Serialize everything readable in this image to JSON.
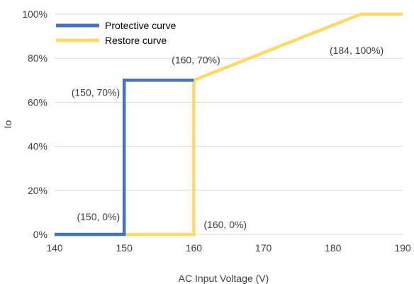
{
  "chart_data": {
    "type": "line",
    "title": "",
    "xlabel": "AC Input Voltage (V)",
    "ylabel": "Io",
    "xlim": [
      140,
      190
    ],
    "ylim": [
      0,
      100
    ],
    "x_ticks": [
      140,
      150,
      160,
      170,
      180,
      190
    ],
    "y_ticks": [
      0,
      20,
      40,
      60,
      80,
      100
    ],
    "y_tick_suffix": "%",
    "grid": "horizontal",
    "legend_position": "top-left",
    "series": [
      {
        "name": "Protective curve",
        "color": "#4472C4",
        "points": [
          [
            140,
            0
          ],
          [
            150,
            0
          ],
          [
            150,
            70
          ],
          [
            160,
            70
          ]
        ]
      },
      {
        "name": "Restore curve",
        "color": "#FFD966",
        "points": [
          [
            140,
            0
          ],
          [
            160,
            0
          ],
          [
            160,
            70
          ],
          [
            184,
            100
          ],
          [
            190,
            100
          ]
        ]
      }
    ],
    "annotations": [
      {
        "text": "(150, 70%)",
        "x": 150,
        "y": 70,
        "anchor": "end",
        "dx": -6,
        "dy": 22
      },
      {
        "text": "(160, 70%)",
        "x": 160,
        "y": 70,
        "anchor": "middle",
        "dx": 3,
        "dy": -24
      },
      {
        "text": "(184, 100%)",
        "x": 184,
        "y": 100,
        "anchor": "middle",
        "dx": -6,
        "dy": 56
      },
      {
        "text": "(150, 0%)",
        "x": 150,
        "y": 0,
        "anchor": "end",
        "dx": -6,
        "dy": -20
      },
      {
        "text": "(160, 0%)",
        "x": 160,
        "y": 0,
        "anchor": "start",
        "dx": 14,
        "dy": -9
      }
    ]
  }
}
